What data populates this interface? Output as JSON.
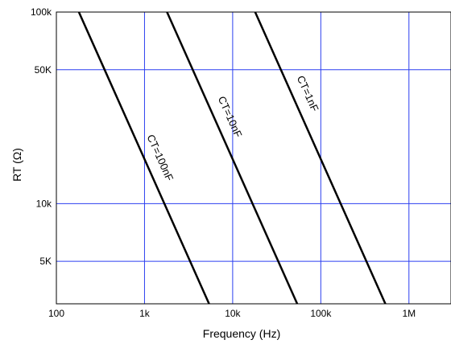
{
  "chart_data": {
    "type": "line",
    "title": "",
    "xlabel": "Frequency (Hz)",
    "ylabel": "RT (Ω)",
    "xscale": "log",
    "yscale": "log",
    "xlim": [
      100,
      3000000
    ],
    "ylim": [
      3000,
      100000
    ],
    "grid": true,
    "x_ticks": [
      {
        "value": 100,
        "label": "100"
      },
      {
        "value": 1000,
        "label": "1k"
      },
      {
        "value": 10000,
        "label": "10k"
      },
      {
        "value": 100000,
        "label": "100k"
      },
      {
        "value": 1000000,
        "label": "1M"
      }
    ],
    "y_ticks": [
      {
        "value": 5000,
        "label": "5K"
      },
      {
        "value": 10000,
        "label": "10k"
      },
      {
        "value": 50000,
        "label": "50K"
      },
      {
        "value": 100000,
        "label": "100k"
      }
    ],
    "series": [
      {
        "name": "CT=100nF",
        "x": [
          180,
          5400
        ],
        "y": [
          100000,
          3000
        ]
      },
      {
        "name": "CT=10nF",
        "x": [
          1800,
          54000
        ],
        "y": [
          100000,
          3000
        ]
      },
      {
        "name": "CT=1nF",
        "x": [
          18000,
          540000
        ],
        "y": [
          100000,
          3000
        ]
      }
    ],
    "colors": {
      "grid": "#2b3ff0",
      "line": "#000000",
      "frame": "#000000"
    }
  }
}
